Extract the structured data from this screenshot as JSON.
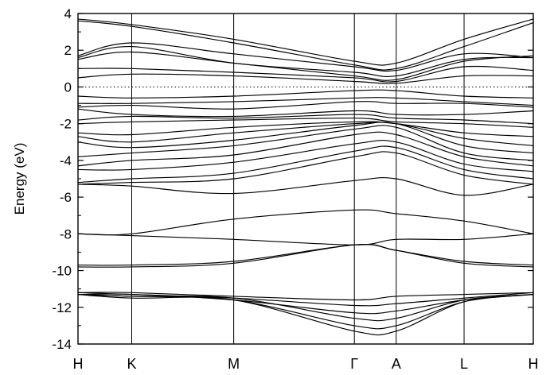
{
  "chart_data": {
    "type": "line",
    "ylabel": "Energy (eV)",
    "ylim": [
      -14,
      4
    ],
    "yticks": [
      4,
      2,
      0,
      -2,
      -4,
      -6,
      -8,
      -10,
      -12,
      -14
    ],
    "fermi_level": 0,
    "kpath": [
      {
        "label": "H",
        "x": 0
      },
      {
        "label": "K",
        "x": 0.118
      },
      {
        "label": "M",
        "x": 0.342
      },
      {
        "label": "Γ",
        "x": 0.607
      },
      {
        "label": "A",
        "x": 0.699
      },
      {
        "label": "L",
        "x": 0.848
      },
      {
        "label": "H",
        "x": 1
      }
    ],
    "x": [
      0,
      0.118,
      0.342,
      0.607,
      0.699,
      0.848,
      1
    ],
    "series": [
      {
        "values": [
          3.7,
          3.4,
          2.6,
          1.4,
          1.3,
          2.6,
          3.7
        ]
      },
      {
        "values": [
          3.6,
          3.3,
          2.4,
          1.2,
          1.0,
          2.2,
          3.5
        ]
      },
      {
        "values": [
          1.7,
          2.4,
          1.8,
          1.1,
          0.9,
          1.8,
          1.6
        ]
      },
      {
        "values": [
          1.6,
          2.2,
          1.3,
          0.8,
          0.6,
          1.5,
          1.6
        ]
      },
      {
        "values": [
          1.5,
          1.9,
          1.3,
          0.6,
          0.4,
          1.4,
          1.7
        ]
      },
      {
        "values": [
          1.0,
          1.0,
          0.8,
          0.5,
          0.3,
          1.1,
          0.9
        ]
      },
      {
        "values": [
          0.5,
          0.7,
          0.6,
          0.3,
          0.2,
          0.6,
          0.6
        ]
      },
      {
        "values": [
          -0.5,
          -0.6,
          -0.5,
          -0.2,
          -0.2,
          -0.5,
          -0.6
        ]
      },
      {
        "values": [
          -0.9,
          -0.9,
          -0.8,
          -0.6,
          -0.6,
          -0.8,
          -1.0
        ]
      },
      {
        "values": [
          -1.1,
          -1.0,
          -1.2,
          -0.8,
          -0.9,
          -0.9,
          -1.1
        ]
      },
      {
        "values": [
          -1.2,
          -1.5,
          -1.6,
          -1.3,
          -1.5,
          -1.5,
          -1.3
        ]
      },
      {
        "values": [
          -1.8,
          -1.6,
          -1.7,
          -1.5,
          -1.7,
          -1.8,
          -2.0
        ]
      },
      {
        "values": [
          -2.0,
          -1.9,
          -1.8,
          -1.7,
          -1.9,
          -2.0,
          -2.2
        ]
      },
      {
        "values": [
          -2.5,
          -2.6,
          -2.2,
          -1.9,
          -2.0,
          -2.5,
          -2.7
        ]
      },
      {
        "values": [
          -2.7,
          -3.0,
          -2.5,
          -2.0,
          -2.0,
          -2.8,
          -3.2
        ]
      },
      {
        "values": [
          -3.0,
          -3.3,
          -2.9,
          -2.1,
          -2.0,
          -3.2,
          -3.6
        ]
      },
      {
        "values": [
          -3.8,
          -3.6,
          -3.2,
          -2.3,
          -2.2,
          -3.6,
          -4.0
        ]
      },
      {
        "values": [
          -4.3,
          -4.0,
          -3.7,
          -2.6,
          -2.6,
          -3.8,
          -4.3
        ]
      },
      {
        "values": [
          -4.5,
          -4.5,
          -4.1,
          -3.1,
          -3.0,
          -4.2,
          -4.6
        ]
      },
      {
        "values": [
          -5.2,
          -5.0,
          -4.7,
          -3.5,
          -3.3,
          -4.5,
          -5.0
        ]
      },
      {
        "values": [
          -5.3,
          -5.2,
          -5.0,
          -3.8,
          -3.6,
          -4.8,
          -5.3
        ]
      },
      {
        "values": [
          -5.3,
          -5.4,
          -5.8,
          -5.1,
          -5.0,
          -5.9,
          -5.3
        ]
      },
      {
        "values": [
          -8.0,
          -8.0,
          -7.2,
          -6.7,
          -6.9,
          -7.3,
          -8.0
        ]
      },
      {
        "values": [
          -8.0,
          -8.1,
          -8.3,
          -8.6,
          -8.3,
          -8.3,
          -8.0
        ]
      },
      {
        "values": [
          -9.7,
          -9.7,
          -9.5,
          -8.6,
          -8.9,
          -9.5,
          -9.7
        ]
      },
      {
        "values": [
          -9.8,
          -9.8,
          -9.6,
          -8.6,
          -8.9,
          -9.6,
          -9.8
        ]
      },
      {
        "values": [
          -11.2,
          -11.2,
          -11.4,
          -11.6,
          -11.4,
          -11.3,
          -11.2
        ]
      },
      {
        "values": [
          -11.2,
          -11.3,
          -11.5,
          -11.9,
          -11.8,
          -11.5,
          -11.2
        ]
      },
      {
        "values": [
          -11.3,
          -11.3,
          -11.6,
          -12.3,
          -12.2,
          -11.6,
          -11.3
        ]
      },
      {
        "values": [
          -11.3,
          -11.4,
          -11.5,
          -12.6,
          -12.6,
          -11.6,
          -11.3
        ]
      },
      {
        "values": [
          -11.3,
          -11.4,
          -11.6,
          -13.0,
          -13.0,
          -11.7,
          -11.3
        ]
      },
      {
        "values": [
          -11.3,
          -11.5,
          -11.6,
          -13.3,
          -13.3,
          -11.7,
          -11.3
        ]
      }
    ]
  }
}
